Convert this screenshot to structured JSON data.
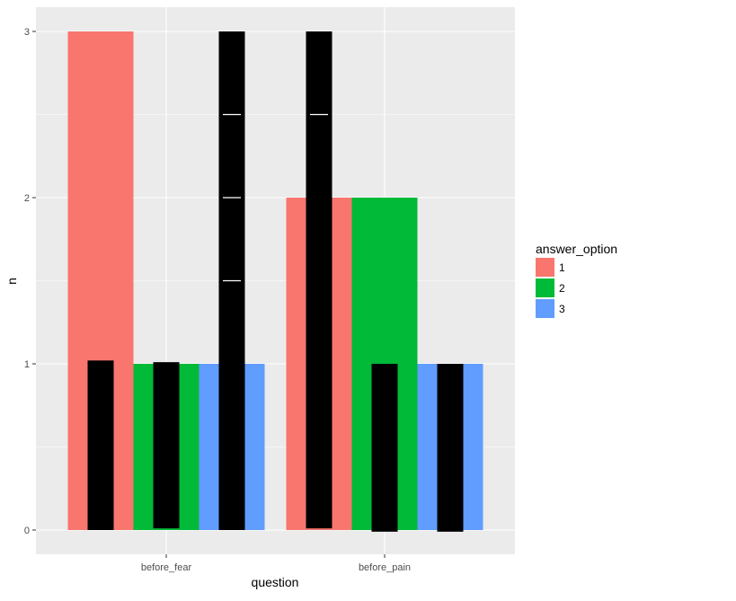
{
  "chart_data": {
    "type": "bar",
    "categories": [
      "before_fear",
      "before_pain"
    ],
    "xlabel": "question",
    "ylabel": "n",
    "ylim": [
      0,
      3
    ],
    "yticks": [
      0,
      1,
      2,
      3
    ],
    "grid": true,
    "panel_background": "#ebebeb",
    "legend": {
      "title": "answer_option",
      "position": "right"
    },
    "series": [
      {
        "name": "1",
        "color": "#f8766d",
        "values": [
          3,
          2
        ]
      },
      {
        "name": "2",
        "color": "#00ba38",
        "values": [
          1,
          2
        ]
      },
      {
        "name": "3",
        "color": "#619cff",
        "values": [
          1,
          1
        ]
      }
    ],
    "overlay": {
      "color": "#000000",
      "bars": [
        {
          "category": "before_fear",
          "series": "1",
          "y0": 0,
          "y1": 1.02
        },
        {
          "category": "before_fear",
          "series": "2",
          "y0": 0.01,
          "y1": 1.01
        },
        {
          "category": "before_fear",
          "series": "3",
          "y0": 0,
          "y1": 3,
          "ticks": [
            1.5,
            2,
            2.5
          ]
        },
        {
          "category": "before_pain",
          "series": "1",
          "y0": 0.01,
          "y1": 3,
          "ticks": [
            2.5
          ]
        },
        {
          "category": "before_pain",
          "series": "2",
          "y0": -0.01,
          "y1": 1
        },
        {
          "category": "before_pain",
          "series": "3",
          "y0": -0.01,
          "y1": 1
        }
      ]
    }
  }
}
